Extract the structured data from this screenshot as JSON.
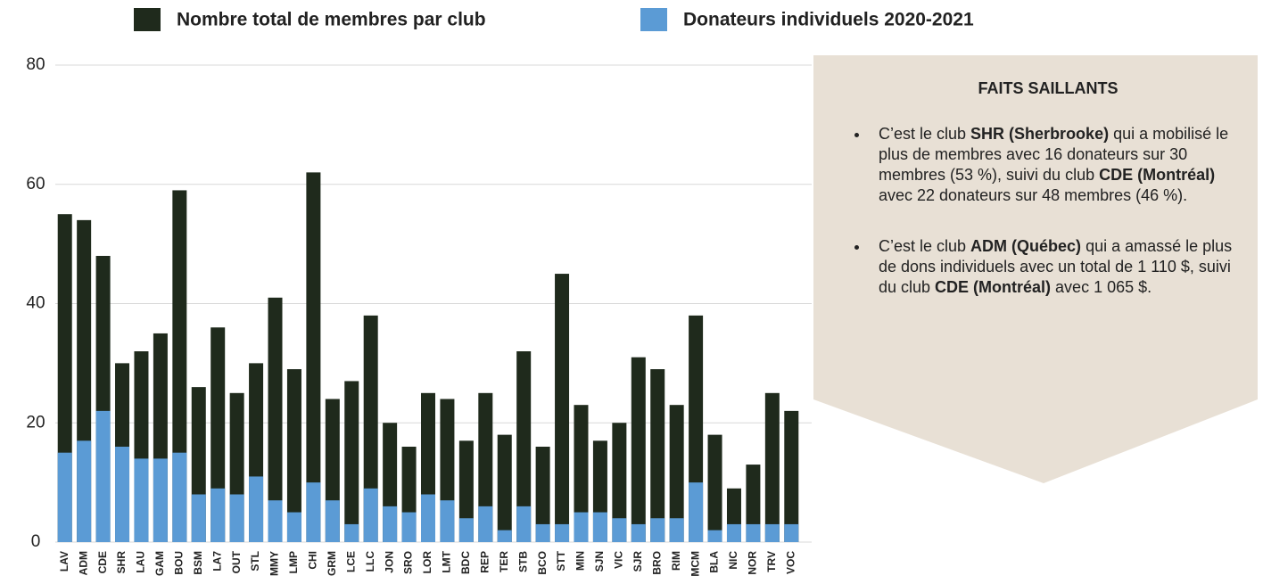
{
  "chart_data": {
    "type": "bar",
    "categories": [
      "LAV",
      "ADM",
      "CDE",
      "SHR",
      "LAU",
      "GAM",
      "BOU",
      "BSM",
      "LA7",
      "OUT",
      "STL",
      "MMY",
      "LMP",
      "CHI",
      "GRM",
      "LCE",
      "LLC",
      "JON",
      "SRO",
      "LOR",
      "LMT",
      "BDC",
      "REP",
      "TER",
      "STB",
      "BCO",
      "STT",
      "MIN",
      "SJN",
      "VIC",
      "SJR",
      "BRO",
      "RIM",
      "MCM",
      "BLA",
      "NIC",
      "NOR",
      "TRV",
      "VOC"
    ],
    "series": [
      {
        "name": "Nombre total de membres par club",
        "color": "#1f2a1c",
        "values": [
          55,
          54,
          48,
          30,
          32,
          35,
          59,
          26,
          36,
          25,
          30,
          41,
          29,
          62,
          24,
          27,
          38,
          20,
          16,
          25,
          24,
          17,
          25,
          18,
          32,
          16,
          45,
          23,
          17,
          20,
          31,
          29,
          23,
          38,
          18,
          9,
          13,
          25,
          22
        ]
      },
      {
        "name": "Donateurs individuels 2020-2021",
        "color": "#5b9bd5",
        "values": [
          15,
          17,
          22,
          16,
          14,
          14,
          15,
          8,
          9,
          8,
          11,
          7,
          5,
          10,
          7,
          3,
          9,
          6,
          5,
          8,
          7,
          4,
          6,
          2,
          6,
          3,
          3,
          5,
          5,
          4,
          3,
          4,
          4,
          10,
          2,
          3,
          3,
          3,
          3
        ]
      }
    ],
    "ylim": [
      0,
      80
    ],
    "yticks": [
      0,
      20,
      40,
      60,
      80
    ],
    "grid": true
  },
  "panel": {
    "title": "FAITS SAILLANTS",
    "bullets": [
      [
        {
          "text": "C’est le club ",
          "bold": false
        },
        {
          "text": "SHR (Sherbrooke)",
          "bold": true
        },
        {
          "text": " qui a mobilisé le plus de membres avec 16 donateurs sur 30 membres (53 %), suivi du club ",
          "bold": false
        },
        {
          "text": "CDE (Montréal)",
          "bold": true
        },
        {
          "text": " avec 22 donateurs sur 48 membres (46 %).",
          "bold": false
        }
      ],
      [
        {
          "text": "C’est le club ",
          "bold": false
        },
        {
          "text": "ADM (Québec)",
          "bold": true
        },
        {
          "text": " qui a amassé le plus de dons individuels avec un total de 1 110 $, suivi du club ",
          "bold": false
        },
        {
          "text": "CDE (Montréal)",
          "bold": true
        },
        {
          "text": " avec 1 065 $.",
          "bold": false
        }
      ]
    ]
  }
}
